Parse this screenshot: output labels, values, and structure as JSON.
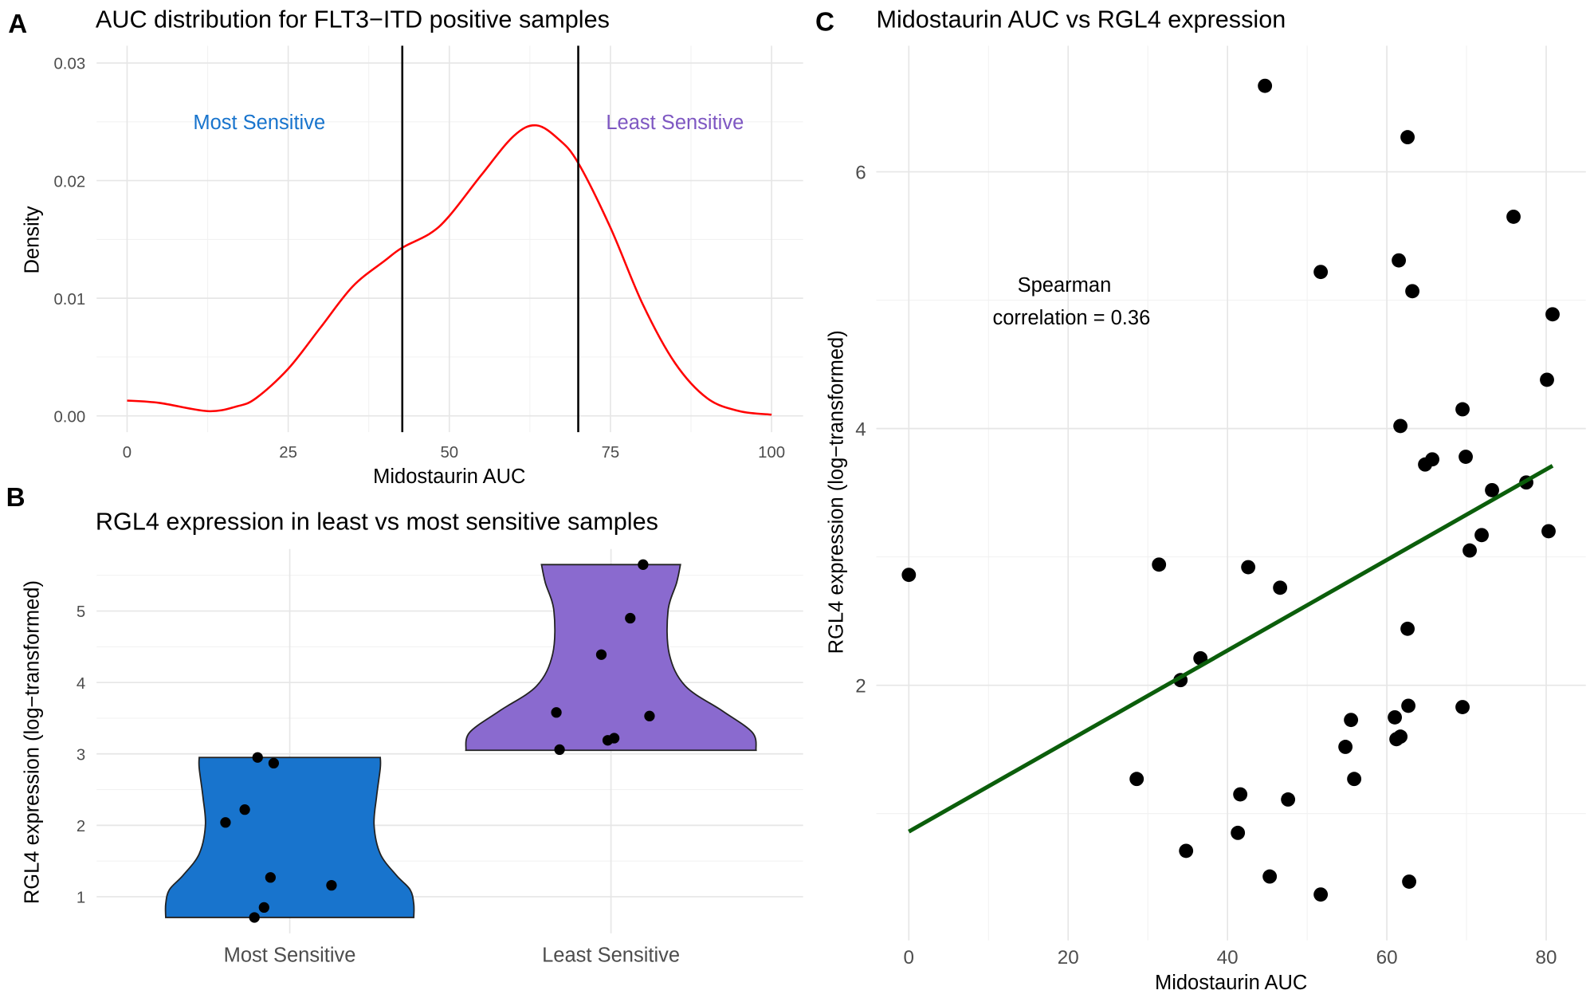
{
  "chart_data": [
    {
      "panel": "A",
      "type": "line",
      "title": "AUC distribution for FLT3−ITD positive samples",
      "xlabel": "Midostaurin AUC",
      "ylabel": "Density",
      "xlim": [
        -5,
        105
      ],
      "ylim": [
        -0.0014,
        0.0315
      ],
      "x_ticks": [
        "0",
        "25",
        "50",
        "75",
        "100"
      ],
      "y_ticks": [
        "0.00",
        "0.01",
        "0.02",
        "0.03"
      ],
      "grid": true,
      "color": "#ff0000",
      "x": [
        0,
        5,
        12.5,
        17,
        20,
        25,
        30,
        35,
        40,
        42.7,
        47,
        50,
        55,
        60,
        63.5,
        67,
        70,
        75,
        80,
        85,
        90,
        95,
        100
      ],
      "y": [
        0.0013,
        0.0011,
        0.0004,
        0.0008,
        0.0015,
        0.004,
        0.0075,
        0.011,
        0.0132,
        0.0143,
        0.0155,
        0.017,
        0.0205,
        0.0238,
        0.0247,
        0.0235,
        0.0215,
        0.016,
        0.0095,
        0.0045,
        0.0015,
        0.0004,
        0.0001
      ],
      "vlines": [
        42.7,
        70.0
      ],
      "annotations": [
        {
          "text": "Most Sensitive",
          "x": 20.5,
          "y": 0.025,
          "color": "#1874cd"
        },
        {
          "text": "Least Sensitive",
          "x": 85,
          "y": 0.025,
          "color": "#7e57c2"
        }
      ]
    },
    {
      "panel": "B",
      "type": "violin",
      "title": "RGL4 expression in least vs most sensitive samples",
      "xlabel": "",
      "ylabel": "RGL4 expression (log−transformed)",
      "ylim": [
        0.49,
        5.87
      ],
      "y_ticks": [
        "1",
        "2",
        "3",
        "4",
        "5"
      ],
      "categories": [
        "Most Sensitive",
        "Least Sensitive"
      ],
      "grid": true,
      "groups": [
        {
          "name": "Most Sensitive",
          "color": "#1874cd",
          "values": [
            2.04,
            2.22,
            2.95,
            2.87,
            1.27,
            1.16,
            0.85,
            0.71
          ],
          "jitter": [
            -0.2,
            -0.14,
            -0.1,
            -0.05,
            -0.06,
            0.13,
            -0.08,
            -0.11
          ],
          "profile": [
            [
              0.71,
              1.0
            ],
            [
              0.9,
              1.0
            ],
            [
              1.1,
              0.97
            ],
            [
              1.3,
              0.86
            ],
            [
              1.6,
              0.73
            ],
            [
              2.0,
              0.68
            ],
            [
              2.4,
              0.7
            ],
            [
              2.8,
              0.73
            ],
            [
              2.95,
              0.73
            ]
          ]
        },
        {
          "name": "Least Sensitive",
          "color": "#8a6acf",
          "values": [
            5.65,
            4.9,
            4.39,
            3.58,
            3.53,
            3.06,
            3.22,
            3.19
          ],
          "jitter": [
            0.1,
            0.06,
            -0.03,
            -0.17,
            0.12,
            -0.16,
            0.01,
            -0.01
          ],
          "profile": [
            [
              3.05,
              1.17
            ],
            [
              3.3,
              1.14
            ],
            [
              3.6,
              0.9
            ],
            [
              3.95,
              0.6
            ],
            [
              4.4,
              0.47
            ],
            [
              5.0,
              0.46
            ],
            [
              5.4,
              0.53
            ],
            [
              5.65,
              0.56
            ]
          ]
        }
      ]
    },
    {
      "panel": "C",
      "type": "scatter",
      "title": "Midostaurin AUC vs RGL4 expression",
      "xlabel": "Midostaurin AUC",
      "ylabel": "RGL4 expression (log−transformed)",
      "xlim": [
        -4.1,
        85
      ],
      "ylim": [
        0.01,
        6.98
      ],
      "x_ticks": [
        "0",
        "20",
        "40",
        "60",
        "80"
      ],
      "y_ticks": [
        "2",
        "4",
        "6"
      ],
      "grid": true,
      "points": [
        [
          0,
          2.86
        ],
        [
          31.4,
          2.94
        ],
        [
          42.6,
          2.92
        ],
        [
          46.6,
          2.76
        ],
        [
          36.6,
          2.21
        ],
        [
          34.1,
          2.04
        ],
        [
          28.6,
          1.27
        ],
        [
          34.8,
          0.71
        ],
        [
          41.3,
          0.85
        ],
        [
          41.6,
          1.15
        ],
        [
          47.6,
          1.11
        ],
        [
          45.3,
          0.51
        ],
        [
          51.7,
          0.37
        ],
        [
          54.8,
          1.52
        ],
        [
          55.5,
          1.73
        ],
        [
          55.9,
          1.27
        ],
        [
          61.0,
          1.75
        ],
        [
          61.2,
          1.58
        ],
        [
          61.7,
          1.6
        ],
        [
          62.7,
          1.84
        ],
        [
          62.8,
          0.47
        ],
        [
          62.6,
          2.44
        ],
        [
          69.5,
          1.83
        ],
        [
          61.7,
          4.02
        ],
        [
          64.8,
          3.72
        ],
        [
          65.7,
          3.76
        ],
        [
          69.5,
          4.15
        ],
        [
          69.9,
          3.78
        ],
        [
          70.4,
          3.05
        ],
        [
          71.9,
          3.17
        ],
        [
          73.2,
          3.52
        ],
        [
          77.5,
          3.58
        ],
        [
          80.3,
          3.2
        ],
        [
          80.1,
          4.38
        ],
        [
          80.8,
          4.89
        ],
        [
          75.9,
          5.65
        ],
        [
          61.5,
          5.31
        ],
        [
          63.2,
          5.07
        ],
        [
          51.7,
          5.22
        ],
        [
          62.6,
          6.27
        ],
        [
          44.7,
          6.67
        ]
      ],
      "fit_line": {
        "x": [
          0,
          80.8
        ],
        "y": [
          0.86,
          3.71
        ],
        "color": "#0b5e0b"
      },
      "annotation": {
        "line1": "Spearman",
        "line2": "correlation =  0.36",
        "x": 19.5,
        "y": 5.0
      }
    }
  ],
  "panel_tags": [
    "A",
    "B",
    "C"
  ]
}
